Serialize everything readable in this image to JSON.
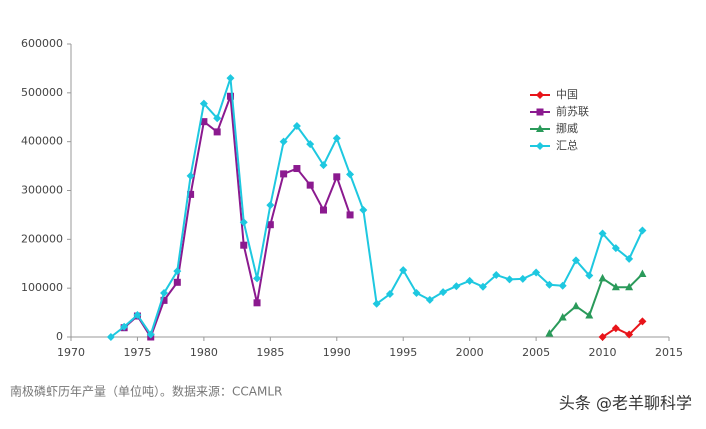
{
  "chart_data": {
    "type": "line",
    "x": [
      1973,
      1974,
      1975,
      1976,
      1977,
      1978,
      1979,
      1980,
      1981,
      1982,
      1983,
      1984,
      1985,
      1986,
      1987,
      1988,
      1989,
      1990,
      1991,
      1992,
      1993,
      1994,
      1995,
      1996,
      1997,
      1998,
      1999,
      2000,
      2001,
      2002,
      2003,
      2004,
      2005,
      2006,
      2007,
      2008,
      2009,
      2010,
      2011,
      2012,
      2013
    ],
    "series": [
      {
        "name": "中国",
        "color": "#e8141a",
        "marker": "diamond",
        "values": [
          null,
          null,
          null,
          null,
          null,
          null,
          null,
          null,
          null,
          null,
          null,
          null,
          null,
          null,
          null,
          null,
          null,
          null,
          null,
          null,
          null,
          null,
          null,
          null,
          null,
          null,
          null,
          null,
          null,
          null,
          null,
          null,
          null,
          null,
          null,
          null,
          null,
          0,
          18000,
          5000,
          32000
        ]
      },
      {
        "name": "前苏联",
        "color": "#8b1a8f",
        "marker": "square",
        "values": [
          null,
          19000,
          43000,
          0,
          75000,
          112000,
          292000,
          441000,
          420000,
          493000,
          188000,
          70000,
          230000,
          334000,
          345000,
          311000,
          260000,
          328000,
          250000,
          null,
          null,
          null,
          null,
          null,
          null,
          null,
          null,
          null,
          null,
          null,
          null,
          null,
          null,
          null,
          null,
          null,
          null,
          null,
          null,
          null,
          null
        ]
      },
      {
        "name": "挪威",
        "color": "#2a9a5a",
        "marker": "triangle",
        "values": [
          null,
          null,
          null,
          null,
          null,
          null,
          null,
          null,
          null,
          null,
          null,
          null,
          null,
          null,
          null,
          null,
          null,
          null,
          null,
          null,
          null,
          null,
          null,
          null,
          null,
          null,
          null,
          null,
          null,
          null,
          null,
          null,
          null,
          7000,
          40000,
          63000,
          44000,
          120000,
          102000,
          102000,
          129000
        ]
      },
      {
        "name": "汇总",
        "color": "#1ec8e0",
        "marker": "diamond",
        "values": [
          0,
          21000,
          45000,
          5000,
          90000,
          135000,
          330000,
          478000,
          448000,
          530000,
          235000,
          120000,
          270000,
          400000,
          432000,
          395000,
          352000,
          407000,
          333000,
          260000,
          68000,
          88000,
          137000,
          90000,
          76000,
          92000,
          104000,
          115000,
          103000,
          127000,
          118000,
          119000,
          132000,
          107000,
          105000,
          157000,
          126000,
          212000,
          182000,
          160000,
          218000
        ]
      }
    ],
    "xlim": [
      1970,
      2015
    ],
    "xticks": [
      1970,
      1975,
      1980,
      1985,
      1990,
      1995,
      2000,
      2005,
      2010,
      2015
    ],
    "ylim": [
      0,
      600000
    ],
    "yticks": [
      0,
      100000,
      200000,
      300000,
      400000,
      500000,
      600000
    ],
    "grid": false,
    "legend": "upper right"
  },
  "caption": "南极磷虾历年产量（单位吨）。数据来源：CCAMLR",
  "watermark": "头条 @老羊聊科学"
}
